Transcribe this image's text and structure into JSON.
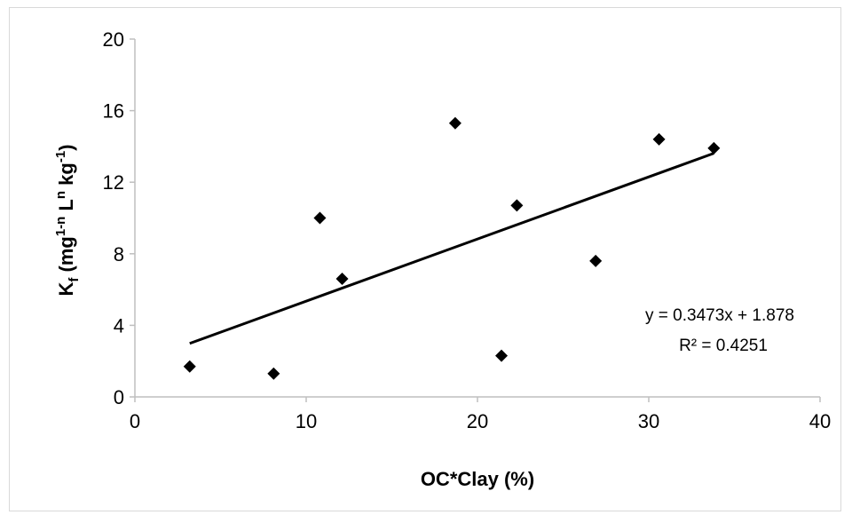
{
  "chart_data": {
    "type": "scatter",
    "title": "",
    "xlabel": "OC*Clay (%)",
    "ylabel": {
      "base": "K",
      "base_sub": "f",
      "open": " (mg",
      "sup1": "1-n",
      "mid1": " L",
      "sup2": "n",
      "mid2": " kg",
      "sup3": "-1",
      "close": ")"
    },
    "xlim": [
      0,
      40
    ],
    "ylim": [
      0,
      20
    ],
    "xticks": [
      0,
      10,
      20,
      30,
      40
    ],
    "yticks": [
      0,
      4,
      8,
      12,
      16,
      20
    ],
    "grid": false,
    "series": [
      {
        "marker": "diamond",
        "color": "#000000",
        "x": [
          3.2,
          8.1,
          10.8,
          12.1,
          18.7,
          21.4,
          22.3,
          26.9,
          30.6,
          33.8
        ],
        "y": [
          1.7,
          1.3,
          10.0,
          6.6,
          15.3,
          2.3,
          10.7,
          7.6,
          14.4,
          13.9
        ]
      }
    ],
    "trendline": {
      "type": "linear",
      "slope": 0.3473,
      "intercept": 1.878,
      "x_range": [
        3.2,
        33.8
      ],
      "equation": "y = 0.3473x + 1.878",
      "r2": "R² = 0.4251"
    }
  }
}
